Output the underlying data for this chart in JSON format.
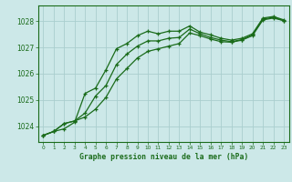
{
  "title": "Graphe pression niveau de la mer (hPa)",
  "bg_color": "#cce8e8",
  "grid_color": "#aacece",
  "line_color": "#1a6b1a",
  "xlim": [
    -0.5,
    23.5
  ],
  "ylim": [
    1023.4,
    1028.6
  ],
  "yticks": [
    1024,
    1025,
    1026,
    1027,
    1028
  ],
  "xticks": [
    0,
    1,
    2,
    3,
    4,
    5,
    6,
    7,
    8,
    9,
    10,
    11,
    12,
    13,
    14,
    15,
    16,
    17,
    18,
    19,
    20,
    21,
    22,
    23
  ],
  "series1": {
    "x": [
      0,
      1,
      2,
      3,
      4,
      5,
      6,
      7,
      8,
      9,
      10,
      11,
      12,
      13,
      14,
      15,
      16,
      17,
      18,
      19,
      20,
      21,
      22,
      23
    ],
    "y": [
      1023.65,
      1023.8,
      1023.9,
      1024.15,
      1025.25,
      1025.45,
      1026.15,
      1026.95,
      1027.15,
      1027.45,
      1027.62,
      1027.52,
      1027.62,
      1027.62,
      1027.82,
      1027.58,
      1027.48,
      1027.35,
      1027.28,
      1027.35,
      1027.52,
      1028.12,
      1028.18,
      1028.05
    ]
  },
  "series2": {
    "x": [
      0,
      1,
      2,
      3,
      4,
      5,
      6,
      7,
      8,
      9,
      10,
      11,
      12,
      13,
      14,
      15,
      16,
      17,
      18,
      19,
      20,
      21,
      22,
      23
    ],
    "y": [
      1023.65,
      1023.8,
      1024.1,
      1024.2,
      1024.35,
      1024.65,
      1025.1,
      1025.8,
      1026.2,
      1026.6,
      1026.85,
      1026.95,
      1027.05,
      1027.15,
      1027.55,
      1027.45,
      1027.32,
      1027.22,
      1027.2,
      1027.28,
      1027.45,
      1028.05,
      1028.12,
      1028.02
    ]
  },
  "series3": {
    "x": [
      0,
      1,
      2,
      3,
      4,
      5,
      6,
      7,
      8,
      9,
      10,
      11,
      12,
      13,
      14,
      15,
      16,
      17,
      18,
      19,
      20,
      21,
      22,
      23
    ],
    "y": [
      1023.65,
      1023.8,
      1024.1,
      1024.2,
      1024.5,
      1025.15,
      1025.55,
      1026.35,
      1026.75,
      1027.05,
      1027.25,
      1027.25,
      1027.35,
      1027.38,
      1027.7,
      1027.52,
      1027.38,
      1027.28,
      1027.22,
      1027.3,
      1027.48,
      1028.08,
      1028.15,
      1028.02
    ]
  }
}
